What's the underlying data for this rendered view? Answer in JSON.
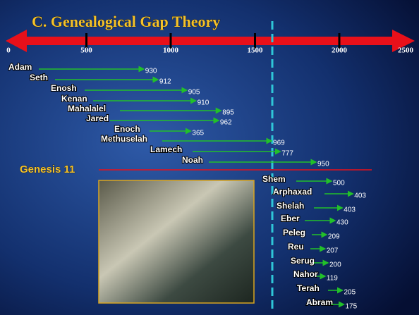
{
  "title": "C. Genealogical Gap Theory",
  "axis_ticks": [
    0,
    500,
    1000,
    1500,
    2000,
    2500
  ],
  "pre_flood": [
    {
      "name": "Adam",
      "years": 930
    },
    {
      "name": "Seth",
      "years": 912
    },
    {
      "name": "Enosh",
      "years": 905
    },
    {
      "name": "Kenan",
      "years": 910
    },
    {
      "name": "Mahalalel",
      "years": 895
    },
    {
      "name": "Jared",
      "years": 962
    },
    {
      "name": "Enoch",
      "years": 365
    },
    {
      "name": "Methuselah",
      "years": 969
    },
    {
      "name": "Lamech",
      "years": 777
    },
    {
      "name": "Noah",
      "years": 950
    }
  ],
  "divider_label": "Genesis 11",
  "post_flood": [
    {
      "name": "Shem",
      "years": 500
    },
    {
      "name": "Arphaxad",
      "years": 403
    },
    {
      "name": "Shelah",
      "years": 403
    },
    {
      "name": "Eber",
      "years": 430
    },
    {
      "name": "Peleg",
      "years": 209
    },
    {
      "name": "Reu",
      "years": 207
    },
    {
      "name": "Serug",
      "years": 200
    },
    {
      "name": "Nahor",
      "years": 119
    },
    {
      "name": "Terah",
      "years": 205
    },
    {
      "name": "Abram",
      "years": 175
    }
  ]
}
